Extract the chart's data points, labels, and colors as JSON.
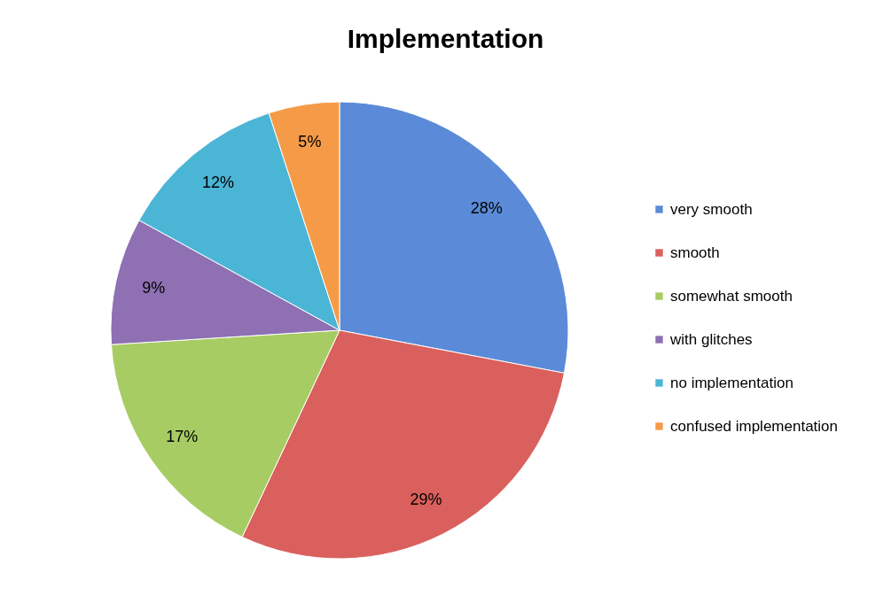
{
  "chart_data": {
    "type": "pie",
    "title": "Implementation",
    "categories": [
      "very smooth",
      "smooth",
      "somewhat smooth",
      "with glitches",
      "no implementation",
      "confused implementation"
    ],
    "values": [
      28,
      29,
      17,
      9,
      12,
      5
    ],
    "colors": [
      "#5b8bd8",
      "#d9605c",
      "#a7cc63",
      "#8e70b3",
      "#4bb5d6",
      "#f59b48"
    ],
    "value_labels": [
      "28%",
      "29%",
      "17%",
      "9%",
      "12%",
      "5%"
    ],
    "legend": "right"
  }
}
